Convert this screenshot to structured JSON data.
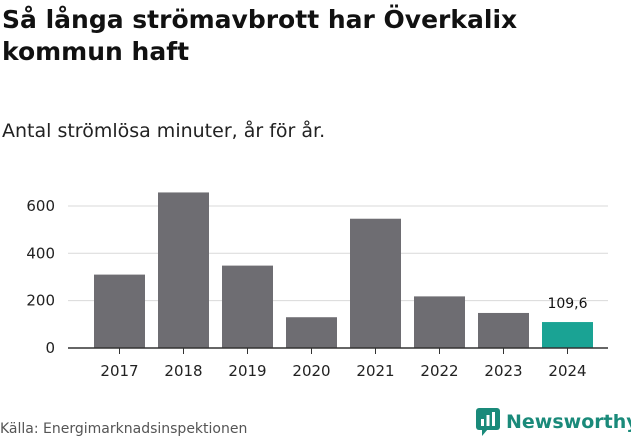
{
  "title": "Så långa strömavbrott har Överkalix kommun haft",
  "subtitle": "Antal strömlösa minuter, år för år.",
  "source": "Källa: Energimarknadsinspektionen",
  "brand": {
    "name": "Newsworthy",
    "color": "#1a8a7a",
    "icon": "newsworthy-logo-icon"
  },
  "colors": {
    "bar": "#6e6d72",
    "highlight": "#1aa394",
    "grid": "#d9d9d9",
    "axis": "#333333"
  },
  "chart_data": {
    "type": "bar",
    "title": "Så långa strömavbrott har Överkalix kommun haft",
    "subtitle": "Antal strömlösa minuter, år för år.",
    "xlabel": "",
    "ylabel": "",
    "categories": [
      "2017",
      "2018",
      "2019",
      "2020",
      "2021",
      "2022",
      "2023",
      "2024"
    ],
    "values": [
      310,
      657,
      348,
      130,
      546,
      218,
      148,
      109.6
    ],
    "highlight_index": 7,
    "data_labels": [
      {
        "category": "2024",
        "text": "109,6"
      }
    ],
    "y_ticks": [
      0,
      200,
      400,
      600
    ],
    "y_tick_labels": [
      "0",
      "200",
      "400",
      "600"
    ],
    "ylim": [
      0,
      680
    ],
    "grid": true
  }
}
